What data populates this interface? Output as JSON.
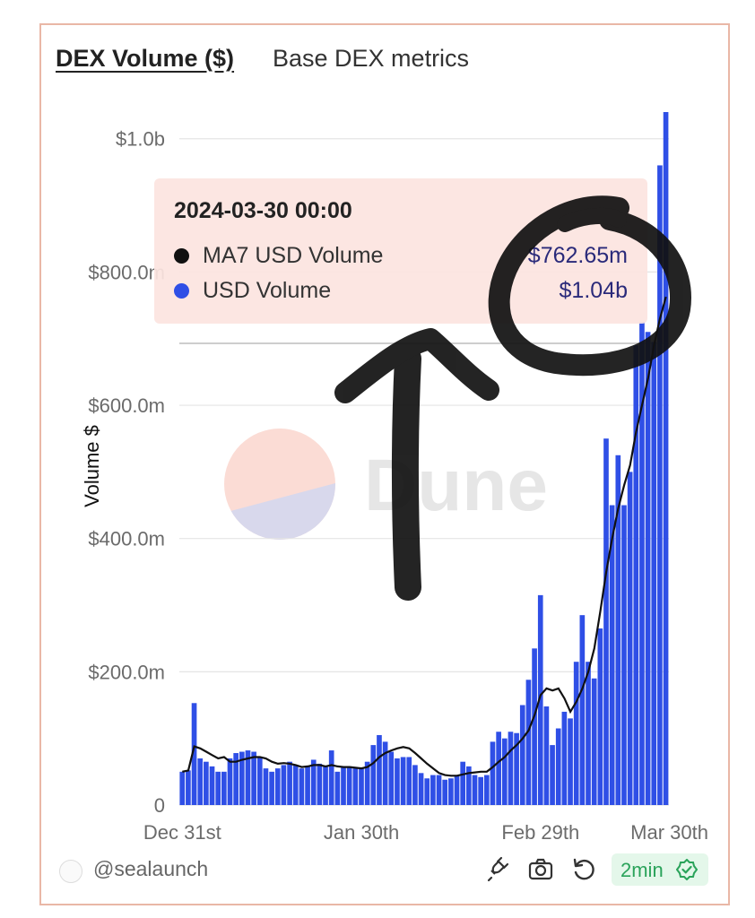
{
  "header": {
    "title": "DEX Volume ($)",
    "subtitle": "Base DEX metrics"
  },
  "tooltip": {
    "date": "2024-03-30 00:00",
    "rows": [
      {
        "label": "MA7 USD Volume",
        "value": "$762.65m",
        "color": "#111111"
      },
      {
        "label": "USD Volume",
        "value": "$1.04b",
        "color": "#2f4fe6"
      }
    ]
  },
  "watermark": {
    "text": "Dune"
  },
  "footer": {
    "author": "@sealaunch",
    "refresh_label": "2min",
    "icons": [
      "embed-icon",
      "camera-icon",
      "refresh-icon",
      "verified-check-icon"
    ]
  },
  "chart_data": {
    "type": "bar",
    "ylabel": "Volume $",
    "ylim": [
      0,
      1040000000
    ],
    "y_ticks": [
      0,
      200000000,
      400000000,
      600000000,
      800000000,
      1000000000
    ],
    "y_tick_labels": [
      "0",
      "$200.0m",
      "$400.0m",
      "$600.0m",
      "$800.0m",
      "$1.0b"
    ],
    "x_tick_labels": [
      "Dec 31st",
      "Jan 30th",
      "Feb 29th",
      "Mar 30th"
    ],
    "x_start": "2023-12-31",
    "grid": true,
    "bar_color": "#2f4fe6",
    "line_color": "#111111",
    "series": [
      {
        "name": "USD Volume",
        "kind": "bar",
        "values": [
          50,
          52,
          153,
          70,
          65,
          58,
          50,
          50,
          70,
          78,
          80,
          82,
          80,
          72,
          55,
          50,
          55,
          60,
          65,
          60,
          55,
          58,
          68,
          62,
          58,
          82,
          50,
          58,
          58,
          55,
          55,
          65,
          90,
          105,
          95,
          80,
          70,
          72,
          72,
          60,
          48,
          40,
          45,
          45,
          38,
          40,
          45,
          65,
          58,
          45,
          42,
          45,
          95,
          110,
          100,
          110,
          108,
          150,
          188,
          235,
          315,
          148,
          90,
          115,
          140,
          130,
          215,
          285,
          215,
          190,
          265,
          550,
          450,
          525,
          450,
          500,
          690,
          725,
          710,
          695,
          960,
          1040
        ]
      },
      {
        "name": "MA7 USD Volume",
        "kind": "line",
        "values": [
          50,
          52,
          88,
          85,
          80,
          75,
          70,
          72,
          65,
          65,
          68,
          70,
          72,
          72,
          70,
          65,
          62,
          63,
          62,
          60,
          57,
          58,
          60,
          60,
          58,
          60,
          58,
          57,
          57,
          56,
          55,
          57,
          63,
          72,
          78,
          82,
          85,
          87,
          85,
          78,
          70,
          62,
          55,
          48,
          45,
          44,
          44,
          46,
          48,
          49,
          50,
          50,
          57,
          65,
          72,
          82,
          90,
          100,
          112,
          135,
          165,
          175,
          172,
          175,
          160,
          140,
          155,
          175,
          200,
          235,
          290,
          350,
          400,
          445,
          480,
          510,
          560,
          600,
          640,
          690,
          730,
          762.65
        ]
      }
    ]
  }
}
